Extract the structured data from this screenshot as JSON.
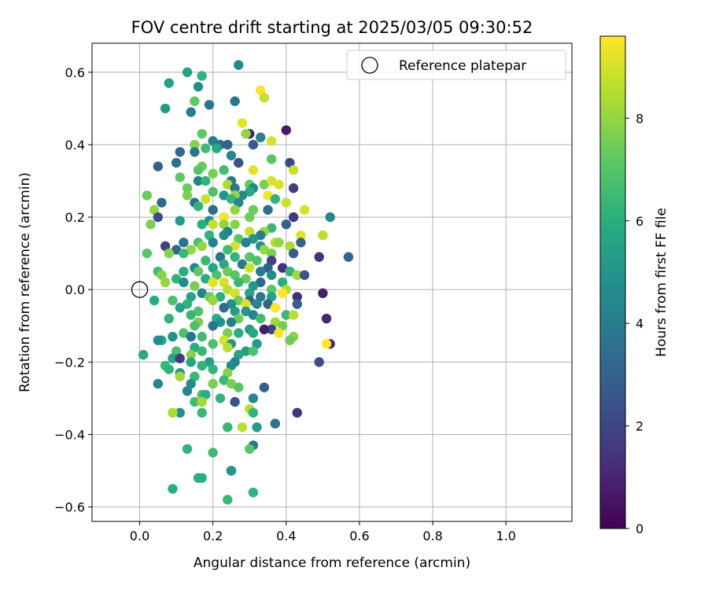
{
  "chart_data": {
    "type": "scatter",
    "title": "FOV centre drift starting at 2025/03/05 09:30:52",
    "xlabel": "Angular distance from reference (arcmin)",
    "ylabel": "Rotation from reference (arcmin)",
    "xlim": [
      -0.13,
      1.18
    ],
    "ylim": [
      -0.64,
      0.68
    ],
    "x_ticks": [
      0.0,
      0.2,
      0.4,
      0.6,
      0.8,
      1.0
    ],
    "x_tick_labels": [
      "0.0",
      "0.2",
      "0.4",
      "0.6",
      "0.8",
      "1.0"
    ],
    "y_ticks": [
      -0.6,
      -0.4,
      -0.2,
      0.0,
      0.2,
      0.4,
      0.6
    ],
    "y_tick_labels": [
      "−0.6",
      "−0.4",
      "−0.2",
      "0.0",
      "0.2",
      "0.4",
      "0.6"
    ],
    "grid": true,
    "legend": {
      "position": "top-right",
      "entries": [
        {
          "label": "Reference platepar",
          "marker": "open-circle"
        }
      ]
    },
    "reference": {
      "x": 0.0,
      "y": 0.0
    },
    "colorbar": {
      "label": "Hours from first FF file",
      "min": 0,
      "max": 9.6,
      "ticks": [
        0,
        2,
        4,
        6,
        8
      ],
      "tick_labels": [
        "0",
        "2",
        "4",
        "6",
        "8"
      ],
      "colormap": [
        "#440154",
        "#472d7b",
        "#3b528b",
        "#2c728e",
        "#21918c",
        "#28ae80",
        "#5ec962",
        "#addc30",
        "#fde725"
      ]
    },
    "points": [
      [
        0.27,
        0.62,
        4.5
      ],
      [
        0.13,
        0.6,
        5.5
      ],
      [
        0.17,
        0.59,
        6.2
      ],
      [
        0.08,
        0.57,
        5.5
      ],
      [
        0.16,
        0.56,
        4.8
      ],
      [
        0.33,
        0.55,
        9.5
      ],
      [
        0.15,
        0.52,
        7.2
      ],
      [
        0.19,
        0.51,
        3.8
      ],
      [
        0.26,
        0.52,
        3.7
      ],
      [
        0.34,
        0.53,
        8.8
      ],
      [
        0.07,
        0.5,
        5.2
      ],
      [
        0.14,
        0.49,
        4.0
      ],
      [
        0.4,
        0.44,
        0.7
      ],
      [
        0.28,
        0.46,
        9.2
      ],
      [
        0.3,
        0.43,
        0.9
      ],
      [
        0.17,
        0.43,
        7.2
      ],
      [
        0.29,
        0.43,
        8.0
      ],
      [
        0.33,
        0.42,
        4.2
      ],
      [
        0.36,
        0.41,
        9.0
      ],
      [
        0.2,
        0.41,
        4.0
      ],
      [
        0.22,
        0.4,
        3.4
      ],
      [
        0.15,
        0.4,
        7.8
      ],
      [
        0.24,
        0.4,
        3.0
      ],
      [
        0.31,
        0.4,
        2.8
      ],
      [
        0.18,
        0.39,
        6.6
      ],
      [
        0.21,
        0.39,
        5.8
      ],
      [
        0.11,
        0.38,
        3.2
      ],
      [
        0.15,
        0.38,
        3.8
      ],
      [
        0.25,
        0.37,
        4.4
      ],
      [
        0.36,
        0.36,
        7.0
      ],
      [
        0.41,
        0.35,
        2.0
      ],
      [
        0.27,
        0.35,
        2.4
      ],
      [
        0.05,
        0.34,
        3.0
      ],
      [
        0.17,
        0.34,
        7.4
      ],
      [
        0.23,
        0.33,
        6.6
      ],
      [
        0.31,
        0.33,
        9.2
      ],
      [
        0.42,
        0.33,
        8.8
      ],
      [
        0.1,
        0.35,
        3.6
      ],
      [
        0.16,
        0.33,
        7.0
      ],
      [
        0.2,
        0.32,
        7.6
      ],
      [
        0.11,
        0.31,
        7.2
      ],
      [
        0.16,
        0.3,
        4.2
      ],
      [
        0.18,
        0.3,
        6.2
      ],
      [
        0.25,
        0.3,
        4.0
      ],
      [
        0.34,
        0.29,
        7.6
      ],
      [
        0.3,
        0.29,
        7.2
      ],
      [
        0.36,
        0.3,
        9.0
      ],
      [
        0.38,
        0.29,
        9.0
      ],
      [
        0.24,
        0.29,
        8.4
      ],
      [
        0.13,
        0.28,
        7.4
      ],
      [
        0.26,
        0.28,
        3.8
      ],
      [
        0.31,
        0.28,
        4.4
      ],
      [
        0.42,
        0.28,
        1.8
      ],
      [
        0.2,
        0.27,
        6.8
      ],
      [
        0.3,
        0.27,
        5.8
      ],
      [
        0.28,
        0.26,
        4.4
      ],
      [
        0.35,
        0.26,
        9.4
      ],
      [
        0.13,
        0.26,
        7.6
      ],
      [
        0.23,
        0.26,
        5.0
      ],
      [
        0.26,
        0.26,
        8.0
      ],
      [
        0.37,
        0.25,
        6.2
      ],
      [
        0.18,
        0.25,
        8.8
      ],
      [
        0.25,
        0.25,
        6.4
      ],
      [
        0.27,
        0.24,
        4.4
      ],
      [
        0.06,
        0.24,
        3.2
      ],
      [
        0.15,
        0.24,
        3.6
      ],
      [
        0.02,
        0.26,
        7.4
      ],
      [
        0.4,
        0.24,
        8.8
      ],
      [
        0.45,
        0.22,
        9.0
      ],
      [
        0.04,
        0.22,
        8.0
      ],
      [
        0.16,
        0.23,
        6.2
      ],
      [
        0.2,
        0.22,
        3.4
      ],
      [
        0.26,
        0.22,
        8.0
      ],
      [
        0.31,
        0.22,
        7.4
      ],
      [
        0.35,
        0.22,
        3.6
      ],
      [
        0.05,
        0.2,
        2.2
      ],
      [
        0.23,
        0.2,
        9.4
      ],
      [
        0.3,
        0.2,
        7.4
      ],
      [
        0.42,
        0.2,
        1.6
      ],
      [
        0.52,
        0.2,
        4.4
      ],
      [
        0.11,
        0.19,
        5.2
      ],
      [
        0.19,
        0.19,
        4.8
      ],
      [
        0.23,
        0.18,
        8.0
      ],
      [
        0.26,
        0.18,
        7.8
      ],
      [
        0.03,
        0.18,
        7.6
      ],
      [
        0.17,
        0.18,
        6.0
      ],
      [
        0.2,
        0.18,
        8.8
      ],
      [
        0.36,
        0.17,
        6.4
      ],
      [
        0.4,
        0.18,
        3.0
      ],
      [
        0.24,
        0.16,
        4.2
      ],
      [
        0.3,
        0.16,
        8.8
      ],
      [
        0.34,
        0.16,
        8.0
      ],
      [
        0.19,
        0.15,
        6.2
      ],
      [
        0.23,
        0.15,
        4.6
      ],
      [
        0.33,
        0.15,
        4.0
      ],
      [
        0.44,
        0.15,
        9.2
      ],
      [
        0.5,
        0.15,
        8.6
      ],
      [
        0.27,
        0.14,
        7.0
      ],
      [
        0.31,
        0.14,
        5.0
      ],
      [
        0.37,
        0.13,
        8.6
      ],
      [
        0.16,
        0.13,
        6.8
      ],
      [
        0.2,
        0.13,
        4.2
      ],
      [
        0.38,
        0.13,
        8.0
      ],
      [
        0.12,
        0.13,
        3.6
      ],
      [
        0.29,
        0.13,
        4.2
      ],
      [
        0.33,
        0.12,
        4.8
      ],
      [
        0.41,
        0.12,
        8.4
      ],
      [
        0.17,
        0.12,
        8.0
      ],
      [
        0.26,
        0.12,
        9.0
      ],
      [
        0.44,
        0.13,
        3.0
      ],
      [
        0.07,
        0.12,
        1.8
      ],
      [
        0.1,
        0.11,
        3.2
      ],
      [
        0.14,
        0.11,
        8.0
      ],
      [
        0.24,
        0.11,
        6.6
      ],
      [
        0.34,
        0.11,
        8.0
      ],
      [
        0.36,
        0.1,
        7.6
      ],
      [
        0.08,
        0.1,
        7.8
      ],
      [
        0.12,
        0.1,
        6.4
      ],
      [
        0.42,
        0.1,
        2.8
      ],
      [
        0.3,
        0.09,
        7.0
      ],
      [
        0.22,
        0.09,
        3.6
      ],
      [
        0.26,
        0.09,
        6.2
      ],
      [
        0.49,
        0.09,
        1.4
      ],
      [
        0.57,
        0.09,
        3.2
      ],
      [
        0.02,
        0.1,
        7.0
      ],
      [
        0.18,
        0.08,
        6.4
      ],
      [
        0.32,
        0.08,
        6.8
      ],
      [
        0.36,
        0.08,
        1.8
      ],
      [
        0.23,
        0.07,
        5.8
      ],
      [
        0.28,
        0.07,
        3.8
      ],
      [
        0.39,
        0.06,
        1.2
      ],
      [
        0.15,
        0.06,
        4.4
      ],
      [
        0.2,
        0.06,
        5.6
      ],
      [
        0.35,
        0.06,
        3.0
      ],
      [
        0.3,
        0.06,
        8.8
      ],
      [
        0.05,
        0.05,
        6.6
      ],
      [
        0.12,
        0.05,
        6.0
      ],
      [
        0.24,
        0.05,
        7.4
      ],
      [
        0.33,
        0.05,
        4.0
      ],
      [
        0.41,
        0.05,
        6.2
      ],
      [
        0.16,
        0.05,
        7.2
      ],
      [
        0.26,
        0.04,
        7.0
      ],
      [
        0.06,
        0.04,
        7.8
      ],
      [
        0.21,
        0.04,
        6.8
      ],
      [
        0.36,
        0.04,
        4.6
      ],
      [
        0.43,
        0.04,
        8.2
      ],
      [
        0.1,
        0.03,
        6.2
      ],
      [
        0.45,
        0.04,
        2.6
      ],
      [
        0.29,
        0.03,
        7.4
      ],
      [
        0.18,
        0.03,
        6.0
      ],
      [
        0.23,
        0.02,
        9.0
      ],
      [
        0.33,
        0.02,
        3.2
      ],
      [
        0.07,
        0.02,
        8.0
      ],
      [
        0.12,
        0.02,
        4.6
      ],
      [
        0.2,
        0.02,
        9.2
      ],
      [
        0.27,
        0.02,
        6.4
      ],
      [
        0.39,
        0.02,
        6.0
      ],
      [
        0.15,
        0.01,
        7.6
      ],
      [
        0.31,
        0.01,
        5.0
      ],
      [
        0.36,
        0.0,
        7.0
      ],
      [
        0.24,
        0.0,
        8.6
      ],
      [
        0.4,
        0.0,
        8.4
      ],
      [
        0.17,
        -0.01,
        4.2
      ],
      [
        0.26,
        -0.01,
        9.0
      ],
      [
        0.3,
        -0.01,
        5.6
      ],
      [
        0.39,
        -0.01,
        9.6
      ],
      [
        0.5,
        -0.01,
        0.8
      ],
      [
        0.14,
        -0.02,
        5.6
      ],
      [
        0.19,
        -0.02,
        7.4
      ],
      [
        0.36,
        -0.02,
        5.4
      ],
      [
        0.22,
        -0.02,
        6.0
      ],
      [
        0.33,
        -0.02,
        3.8
      ],
      [
        0.43,
        -0.02,
        1.2
      ],
      [
        0.09,
        -0.03,
        6.8
      ],
      [
        0.2,
        -0.03,
        8.0
      ],
      [
        0.27,
        -0.03,
        7.4
      ],
      [
        0.3,
        -0.03,
        3.0
      ],
      [
        0.04,
        -0.03,
        5.8
      ],
      [
        0.13,
        -0.04,
        6.2
      ],
      [
        0.25,
        -0.04,
        4.8
      ],
      [
        0.32,
        -0.04,
        4.4
      ],
      [
        0.35,
        -0.04,
        3.0
      ],
      [
        0.29,
        -0.04,
        9.2
      ],
      [
        0.43,
        -0.04,
        2.8
      ],
      [
        0.11,
        -0.05,
        5.4
      ],
      [
        0.37,
        -0.05,
        9.6
      ],
      [
        0.23,
        -0.05,
        3.4
      ],
      [
        0.29,
        -0.06,
        5.0
      ],
      [
        0.16,
        -0.06,
        6.8
      ],
      [
        0.26,
        -0.06,
        5.2
      ],
      [
        0.4,
        -0.07,
        6.4
      ],
      [
        0.42,
        -0.07,
        8.6
      ],
      [
        0.31,
        -0.07,
        4.4
      ],
      [
        0.14,
        -0.07,
        6.4
      ],
      [
        0.08,
        -0.08,
        6.2
      ],
      [
        0.21,
        -0.08,
        6.0
      ],
      [
        0.27,
        -0.08,
        7.4
      ],
      [
        0.33,
        -0.08,
        6.6
      ],
      [
        0.51,
        -0.08,
        1.0
      ],
      [
        0.16,
        -0.09,
        7.6
      ],
      [
        0.22,
        -0.09,
        5.0
      ],
      [
        0.37,
        -0.09,
        8.2
      ],
      [
        0.25,
        -0.09,
        4.2
      ],
      [
        0.39,
        -0.1,
        7.6
      ],
      [
        0.15,
        -0.1,
        6.8
      ],
      [
        0.2,
        -0.1,
        3.6
      ],
      [
        0.36,
        -0.11,
        2.0
      ],
      [
        0.12,
        -0.12,
        6.8
      ],
      [
        0.3,
        -0.11,
        5.4
      ],
      [
        0.34,
        -0.11,
        0.8
      ],
      [
        0.38,
        -0.12,
        9.4
      ],
      [
        0.24,
        -0.12,
        7.6
      ],
      [
        0.27,
        -0.12,
        6.0
      ],
      [
        0.31,
        -0.12,
        5.8
      ],
      [
        0.17,
        -0.13,
        6.6
      ],
      [
        0.42,
        -0.13,
        7.8
      ],
      [
        0.09,
        -0.13,
        4.8
      ],
      [
        0.14,
        -0.13,
        3.6
      ],
      [
        0.41,
        -0.14,
        7.4
      ],
      [
        0.06,
        -0.14,
        5.8
      ],
      [
        0.23,
        -0.14,
        9.0
      ],
      [
        0.32,
        -0.15,
        5.2
      ],
      [
        0.52,
        -0.15,
        1.0
      ],
      [
        0.51,
        -0.15,
        9.6
      ],
      [
        0.05,
        -0.14,
        4.6
      ],
      [
        0.2,
        -0.15,
        6.8
      ],
      [
        0.25,
        -0.15,
        5.0
      ],
      [
        0.15,
        -0.16,
        6.0
      ],
      [
        0.29,
        -0.17,
        5.4
      ],
      [
        0.24,
        -0.16,
        8.6
      ],
      [
        0.31,
        -0.17,
        6.8
      ],
      [
        0.17,
        -0.17,
        6.4
      ],
      [
        0.1,
        -0.17,
        6.8
      ],
      [
        0.14,
        -0.18,
        7.8
      ],
      [
        0.27,
        -0.18,
        5.6
      ],
      [
        0.01,
        -0.18,
        5.8
      ],
      [
        0.09,
        -0.19,
        5.6
      ],
      [
        0.11,
        -0.19,
        1.6
      ],
      [
        0.14,
        -0.2,
        5.6
      ],
      [
        0.19,
        -0.2,
        5.4
      ],
      [
        0.26,
        -0.2,
        4.2
      ],
      [
        0.49,
        -0.2,
        2.2
      ],
      [
        0.07,
        -0.21,
        6.4
      ],
      [
        0.17,
        -0.21,
        6.2
      ],
      [
        0.25,
        -0.21,
        4.6
      ],
      [
        0.08,
        -0.22,
        6.2
      ],
      [
        0.2,
        -0.22,
        6.2
      ],
      [
        0.11,
        -0.23,
        5.0
      ],
      [
        0.24,
        -0.23,
        7.8
      ],
      [
        0.11,
        -0.24,
        8.2
      ],
      [
        0.15,
        -0.24,
        6.4
      ],
      [
        0.23,
        -0.25,
        6.4
      ],
      [
        0.05,
        -0.26,
        4.4
      ],
      [
        0.25,
        -0.26,
        7.6
      ],
      [
        0.14,
        -0.26,
        4.6
      ],
      [
        0.2,
        -0.26,
        7.6
      ],
      [
        0.34,
        -0.27,
        2.8
      ],
      [
        0.27,
        -0.27,
        7.0
      ],
      [
        0.13,
        -0.28,
        4.4
      ],
      [
        0.17,
        -0.29,
        6.8
      ],
      [
        0.18,
        -0.29,
        6.0
      ],
      [
        0.22,
        -0.3,
        6.2
      ],
      [
        0.31,
        -0.3,
        4.4
      ],
      [
        0.26,
        -0.31,
        2.4
      ],
      [
        0.15,
        -0.31,
        6.6
      ],
      [
        0.17,
        -0.31,
        8.2
      ],
      [
        0.3,
        -0.33,
        8.6
      ],
      [
        0.11,
        -0.34,
        4.8
      ],
      [
        0.09,
        -0.34,
        8.4
      ],
      [
        0.43,
        -0.34,
        1.4
      ],
      [
        0.17,
        -0.34,
        6.4
      ],
      [
        0.31,
        -0.34,
        6.2
      ],
      [
        0.37,
        -0.37,
        3.6
      ],
      [
        0.24,
        -0.38,
        6.4
      ],
      [
        0.28,
        -0.38,
        8.6
      ],
      [
        0.32,
        -0.38,
        5.2
      ],
      [
        0.31,
        -0.43,
        3.8
      ],
      [
        0.13,
        -0.44,
        6.2
      ],
      [
        0.3,
        -0.44,
        7.0
      ],
      [
        0.2,
        -0.45,
        6.6
      ],
      [
        0.25,
        -0.5,
        0.8
      ],
      [
        0.25,
        -0.5,
        5.0
      ],
      [
        0.16,
        -0.52,
        6.0
      ],
      [
        0.17,
        -0.52,
        6.0
      ],
      [
        0.09,
        -0.55,
        6.0
      ],
      [
        0.31,
        -0.56,
        6.2
      ],
      [
        0.24,
        -0.58,
        6.4
      ]
    ]
  }
}
